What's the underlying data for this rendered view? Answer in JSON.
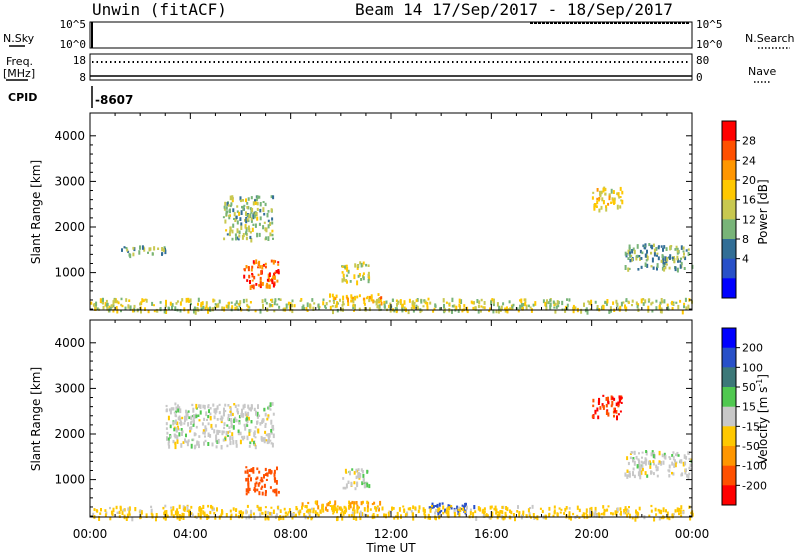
{
  "header": {
    "radar": "Unwin (fitACF)",
    "beam_date": "Beam 14  17/Sep/2017 - 18/Sep/2017"
  },
  "top_panels": {
    "nsky_label": "N.Sky",
    "nsky_ticks": [
      "10^5",
      "10^0"
    ],
    "nsearch_label": "N.Search",
    "nsearch_ticks": [
      "10^5",
      "10^0"
    ],
    "freq_label_1": "Freq.",
    "freq_label_2": "[MHz]",
    "freq_ticks": [
      "18",
      "8"
    ],
    "nave_label": "Nave",
    "nave_ticks": [
      "80",
      "0"
    ],
    "cpid_label": "CPID",
    "cpid_value": "-8607"
  },
  "power_panel": {
    "ylabel": "Slant Range [km]",
    "yticks": [
      "4000",
      "3000",
      "2000",
      "1000"
    ],
    "colorbar_label": "Power [dB]",
    "colorbar_ticks": [
      "28",
      "24",
      "20",
      "16",
      "12",
      "8",
      "4"
    ],
    "colorbar_colors": [
      "#ff0000",
      "#ff5000",
      "#ff9600",
      "#ffc800",
      "#c8c850",
      "#78b478",
      "#326e96",
      "#2850c8",
      "#0000ff"
    ]
  },
  "velocity_panel": {
    "ylabel": "Slant Range [km]",
    "yticks": [
      "4000",
      "3000",
      "2000",
      "1000"
    ],
    "colorbar_label": "Velocity [m s",
    "colorbar_label_sup": "-1",
    "colorbar_label_close": "]",
    "colorbar_ticks": [
      "200",
      "100",
      "50",
      "15",
      "-15",
      "-50",
      "-100",
      "-200"
    ],
    "colorbar_colors": [
      "#0000ff",
      "#2850c8",
      "#3c7878",
      "#50c850",
      "#c8c8c8",
      "#ffc800",
      "#ff9600",
      "#ff5000",
      "#ff0000"
    ]
  },
  "xaxis": {
    "label": "Time UT",
    "ticks": [
      "00:00",
      "04:00",
      "08:00",
      "12:00",
      "16:00",
      "20:00",
      "00:00"
    ]
  },
  "chart_data": {
    "type": "heatmap",
    "x_unit": "hours UT",
    "xlim": [
      0,
      24
    ],
    "ylim": [
      180,
      4500
    ],
    "power_db": [
      {
        "x": [
          5.3,
          7.3
        ],
        "y": [
          1750,
          2700
        ],
        "level": 10
      },
      {
        "x": [
          6.1,
          7.5
        ],
        "y": [
          700,
          1300
        ],
        "level": 24
      },
      {
        "x": [
          1.2,
          3.0
        ],
        "y": [
          1400,
          1600
        ],
        "level": 8
      },
      {
        "x": [
          10.0,
          11.1
        ],
        "y": [
          800,
          1250
        ],
        "level": 12
      },
      {
        "x": [
          9.5,
          11.6
        ],
        "y": [
          350,
          550
        ],
        "level": 18
      },
      {
        "x": [
          0.0,
          24.0
        ],
        "y": [
          180,
          450
        ],
        "level": 12
      },
      {
        "x": [
          20.0,
          21.2
        ],
        "y": [
          2400,
          2900
        ],
        "level": 14
      },
      {
        "x": [
          21.3,
          24.0
        ],
        "y": [
          1100,
          1650
        ],
        "level": 8
      }
    ],
    "velocity_ms": [
      {
        "x": [
          3.0,
          7.3
        ],
        "y": [
          1750,
          2700
        ],
        "level": 0
      },
      {
        "x": [
          6.1,
          7.5
        ],
        "y": [
          700,
          1300
        ],
        "level": -120
      },
      {
        "x": [
          10.0,
          11.1
        ],
        "y": [
          800,
          1250
        ],
        "level": 0
      },
      {
        "x": [
          8.2,
          11.6
        ],
        "y": [
          350,
          550
        ],
        "level": -50
      },
      {
        "x": [
          13.5,
          15.3
        ],
        "y": [
          300,
          500
        ],
        "level": 180
      },
      {
        "x": [
          0.0,
          24.0
        ],
        "y": [
          180,
          450
        ],
        "level": -30
      },
      {
        "x": [
          20.0,
          21.2
        ],
        "y": [
          2400,
          2900
        ],
        "level": -200
      },
      {
        "x": [
          21.3,
          24.0
        ],
        "y": [
          1100,
          1650
        ],
        "level": 0
      }
    ]
  }
}
